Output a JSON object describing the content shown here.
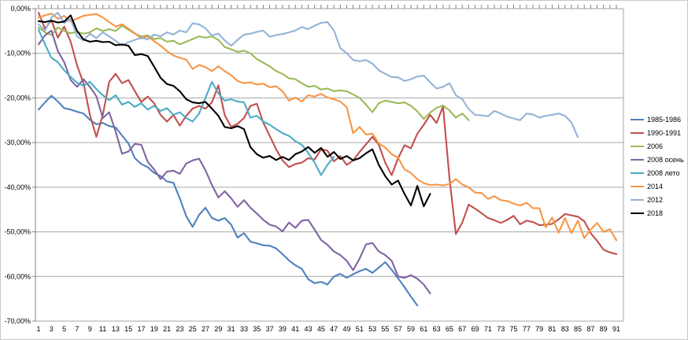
{
  "chart": {
    "background": "#ffffff",
    "gridline_color": "#a6a6a6",
    "axis_color": "#808080",
    "text_color": "#000000"
  },
  "chart_data": {
    "type": "line",
    "title": "",
    "xlabel": "",
    "ylabel": "",
    "n_points": 91,
    "grid": true,
    "legend_position": "right",
    "y_axis": {
      "min": -70,
      "max": 0,
      "step": 10,
      "tick_labels": [
        "0,00%",
        "-10,00%",
        "-20,00%",
        "-30,00%",
        "-40,00%",
        "-50,00%",
        "-60,00%",
        "-70,00%"
      ]
    },
    "x_tick_labels": [
      "1",
      "3",
      "5",
      "7",
      "9",
      "11",
      "13",
      "15",
      "17",
      "19",
      "21",
      "23",
      "25",
      "27",
      "29",
      "31",
      "33",
      "35",
      "37",
      "39",
      "41",
      "43",
      "45",
      "47",
      "49",
      "51",
      "53",
      "55",
      "57",
      "59",
      "61",
      "63",
      "65",
      "67",
      "69",
      "71",
      "73",
      "75",
      "77",
      "79",
      "81",
      "83",
      "85",
      "87",
      "89",
      "91"
    ],
    "series": [
      {
        "name": "1985-1986",
        "color": "#4F81BD",
        "values": [
          -22.6,
          -21.0,
          -19.5,
          -20.8,
          -22.3,
          -22.6,
          -23.1,
          -23.5,
          -24.9,
          -25.9,
          -25.6,
          -26.3,
          -26.6,
          -28.4,
          -30.2,
          -33.5,
          -34.8,
          -35.5,
          -36.8,
          -37.5,
          -38.7,
          -39.0,
          -42.5,
          -46.5,
          -48.9,
          -46.2,
          -44.6,
          -46.9,
          -47.5,
          -46.9,
          -48.4,
          -51.3,
          -50.3,
          -52.2,
          -52.6,
          -53.0,
          -53.1,
          -53.7,
          -55.0,
          -56.4,
          -57.5,
          -58.3,
          -60.6,
          -61.5,
          -61.2,
          -61.8,
          -60.0,
          -59.4,
          -60.3,
          -59.5,
          -58.8,
          -58.3,
          -59.2,
          -58.0,
          -56.8,
          -58.5,
          -60.4,
          -62.4,
          -64.5,
          -66.5
        ]
      },
      {
        "name": "1990-1991",
        "color": "#C0504D",
        "values": [
          -0.9,
          -4.5,
          -2.6,
          -6.5,
          -4.0,
          -7.4,
          -12.7,
          -16.7,
          -23.8,
          -28.7,
          -23.8,
          -16.4,
          -14.6,
          -16.7,
          -16.0,
          -18.5,
          -20.9,
          -19.7,
          -21.2,
          -23.8,
          -25.3,
          -23.8,
          -26.2,
          -24.0,
          -22.4,
          -21.8,
          -22.4,
          -21.0,
          -17.2,
          -23.9,
          -26.5,
          -25.8,
          -24.5,
          -21.8,
          -21.3,
          -25.5,
          -28.5,
          -31.5,
          -34.0,
          -35.5,
          -34.8,
          -34.5,
          -33.5,
          -33.8,
          -31.5,
          -31.8,
          -34.2,
          -33.0,
          -35.0,
          -34.0,
          -32.1,
          -30.4,
          -28.7,
          -30.5,
          -34.5,
          -37.3,
          -33.5,
          -30.6,
          -31.3,
          -28.0,
          -26.0,
          -23.8,
          -25.6,
          -21.9,
          -38.0,
          -50.5,
          -47.9,
          -43.9,
          -44.8,
          -45.8,
          -46.9,
          -47.4,
          -48.0,
          -47.3,
          -46.4,
          -48.3,
          -47.5,
          -47.8,
          -48.5,
          -48.4,
          -48.2,
          -47.2,
          -46.0,
          -46.3,
          -46.6,
          -47.6,
          -50.3,
          -52.0,
          -54.0,
          -54.6,
          -55.0
        ]
      },
      {
        "name": "2006",
        "color": "#9BBB59",
        "values": [
          -4.2,
          -5.3,
          -5.9,
          -4.2,
          -5.0,
          -5.5,
          -5.2,
          -5.6,
          -5.3,
          -4.4,
          -5.0,
          -4.6,
          -5.0,
          -3.8,
          -4.7,
          -5.6,
          -6.2,
          -6.0,
          -6.8,
          -6.6,
          -7.4,
          -7.2,
          -8.0,
          -7.4,
          -6.8,
          -6.2,
          -6.5,
          -6.2,
          -7.0,
          -8.6,
          -9.1,
          -9.7,
          -9.4,
          -10.0,
          -11.3,
          -12.1,
          -12.9,
          -14.0,
          -14.6,
          -15.6,
          -15.8,
          -16.7,
          -17.5,
          -17.3,
          -18.1,
          -17.9,
          -18.5,
          -18.3,
          -18.5,
          -19.2,
          -20.0,
          -21.5,
          -23.2,
          -21.2,
          -20.6,
          -20.9,
          -21.2,
          -21.0,
          -21.8,
          -23.0,
          -24.7,
          -23.3,
          -22.2,
          -21.7,
          -22.8,
          -24.4,
          -23.5,
          -25.0
        ]
      },
      {
        "name": "2008 осень",
        "color": "#8064A2",
        "values": [
          -8.0,
          -6.0,
          -4.9,
          -9.5,
          -12.0,
          -16.0,
          -17.5,
          -15.8,
          -17.5,
          -19.6,
          -24.5,
          -23.2,
          -27.5,
          -32.5,
          -32.0,
          -30.3,
          -30.5,
          -34.3,
          -36.0,
          -38.2,
          -36.5,
          -36.3,
          -37.0,
          -34.7,
          -34.0,
          -33.6,
          -36.2,
          -39.5,
          -42.3,
          -40.9,
          -42.5,
          -44.4,
          -42.9,
          -44.6,
          -45.9,
          -47.3,
          -48.4,
          -48.8,
          -49.9,
          -47.9,
          -49.1,
          -47.5,
          -47.3,
          -49.5,
          -51.8,
          -52.9,
          -54.4,
          -55.2,
          -56.5,
          -58.6,
          -56.0,
          -52.8,
          -52.5,
          -54.4,
          -55.2,
          -56.5,
          -60.0,
          -60.3,
          -59.7,
          -60.5,
          -61.8,
          -63.8
        ]
      },
      {
        "name": "2008 лето",
        "color": "#4BACC6",
        "values": [
          -4.7,
          -8.0,
          -11.0,
          -12.0,
          -13.8,
          -15.3,
          -16.6,
          -17.3,
          -16.4,
          -18.0,
          -19.4,
          -20.5,
          -19.4,
          -21.5,
          -20.9,
          -22.0,
          -21.2,
          -22.6,
          -21.8,
          -22.9,
          -22.3,
          -23.8,
          -23.2,
          -24.5,
          -25.3,
          -23.5,
          -20.0,
          -16.4,
          -19.0,
          -20.6,
          -20.3,
          -20.8,
          -21.0,
          -24.4,
          -24.0,
          -25.3,
          -26.0,
          -27.0,
          -27.9,
          -28.5,
          -29.7,
          -30.5,
          -32.3,
          -34.5,
          -37.3,
          -35.0,
          -33.2
        ]
      },
      {
        "name": "2014",
        "color": "#F79646",
        "values": [
          -2.0,
          -1.5,
          -1.1,
          -2.3,
          -1.6,
          -2.9,
          -2.2,
          -1.6,
          -1.4,
          -1.2,
          -2.0,
          -3.0,
          -4.0,
          -3.5,
          -4.5,
          -5.5,
          -6.7,
          -6.2,
          -7.3,
          -8.3,
          -9.5,
          -10.5,
          -11.0,
          -11.4,
          -13.5,
          -12.6,
          -13.1,
          -14.0,
          -12.9,
          -14.0,
          -14.9,
          -16.2,
          -16.7,
          -16.5,
          -17.0,
          -16.8,
          -17.6,
          -17.4,
          -18.5,
          -20.6,
          -19.9,
          -20.8,
          -19.4,
          -19.7,
          -19.1,
          -19.9,
          -20.3,
          -20.8,
          -22.1,
          -27.9,
          -26.5,
          -28.2,
          -28.0,
          -30.2,
          -31.1,
          -32.6,
          -33.4,
          -36.0,
          -36.8,
          -38.2,
          -39.1,
          -39.5,
          -39.4,
          -39.6,
          -39.3,
          -38.2,
          -39.4,
          -40.0,
          -41.2,
          -41.3,
          -42.6,
          -42.0,
          -42.9,
          -43.1,
          -43.7,
          -44.1,
          -43.5,
          -44.7,
          -44.7,
          -49.0,
          -46.8,
          -50.2,
          -46.9,
          -50.3,
          -47.5,
          -51.4,
          -49.5,
          -48.0,
          -50.0,
          -49.4,
          -51.9
        ]
      },
      {
        "name": "2012",
        "color": "#95B3D7",
        "values": [
          -3.5,
          -4.9,
          -2.0,
          -0.9,
          -3.2,
          -2.3,
          -6.2,
          -7.1,
          -5.6,
          -6.6,
          -5.3,
          -6.2,
          -7.2,
          -8.3,
          -7.5,
          -7.0,
          -6.5,
          -6.9,
          -5.8,
          -6.2,
          -5.3,
          -5.8,
          -4.9,
          -5.3,
          -3.3,
          -3.5,
          -4.4,
          -6.0,
          -5.6,
          -7.1,
          -8.3,
          -7.0,
          -5.8,
          -5.6,
          -5.2,
          -4.9,
          -6.3,
          -5.9,
          -5.7,
          -5.3,
          -4.9,
          -4.1,
          -4.6,
          -3.8,
          -3.2,
          -3.0,
          -4.9,
          -8.8,
          -10.0,
          -11.5,
          -11.8,
          -11.5,
          -12.3,
          -13.8,
          -14.6,
          -15.3,
          -15.4,
          -16.2,
          -15.8,
          -15.2,
          -15.0,
          -16.5,
          -17.9,
          -17.5,
          -16.7,
          -19.4,
          -20.3,
          -22.5,
          -23.8,
          -23.9,
          -24.1,
          -22.9,
          -23.5,
          -24.2,
          -24.6,
          -25.0,
          -23.5,
          -23.7,
          -24.4,
          -24.0,
          -23.8,
          -23.5,
          -24.0,
          -25.5,
          -28.8
        ]
      },
      {
        "name": "2018",
        "color": "#000000",
        "values": [
          -2.8,
          -3.0,
          -2.7,
          -3.1,
          -2.9,
          -1.5,
          -5.0,
          -6.9,
          -7.4,
          -7.2,
          -7.5,
          -7.4,
          -8.2,
          -8.0,
          -8.3,
          -10.4,
          -10.2,
          -10.6,
          -13.0,
          -15.5,
          -16.9,
          -17.3,
          -18.5,
          -20.3,
          -21.0,
          -21.2,
          -20.9,
          -22.4,
          -24.0,
          -26.5,
          -26.8,
          -26.3,
          -27.0,
          -31.0,
          -32.6,
          -33.4,
          -33.0,
          -33.9,
          -33.2,
          -33.9,
          -32.6,
          -32.0,
          -31.0,
          -32.3,
          -31.2,
          -33.2,
          -32.1,
          -33.7,
          -33.0,
          -34.0,
          -33.5,
          -32.4,
          -31.5,
          -35.0,
          -37.5,
          -39.4,
          -38.5,
          -41.5,
          -44.1,
          -39.7,
          -44.3,
          -41.5
        ]
      }
    ]
  }
}
